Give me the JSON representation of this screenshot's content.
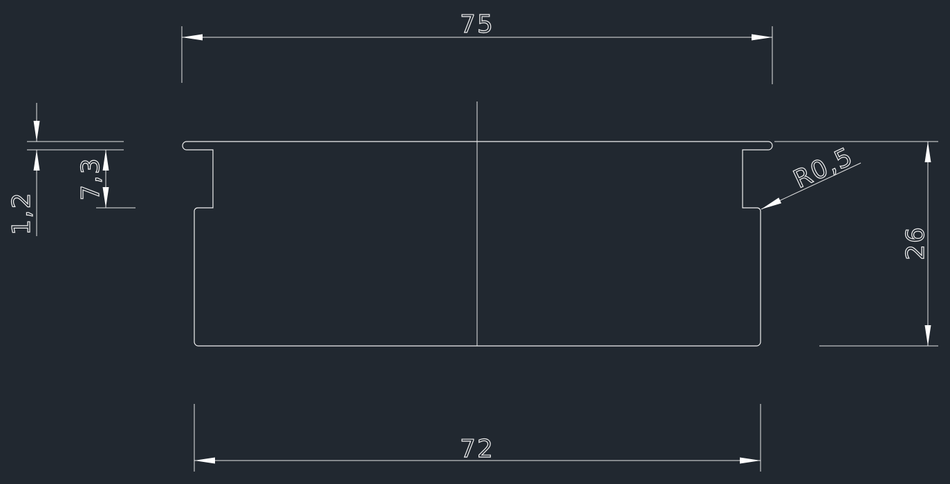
{
  "canvas": {
    "background": "#212830",
    "line_color": "#f2f2f2"
  },
  "dimensions": {
    "top_width": "75",
    "bottom_width": "72",
    "height": "26",
    "flange_thickness": "1,2",
    "step_depth": "7,3",
    "radius": "R0,5"
  }
}
